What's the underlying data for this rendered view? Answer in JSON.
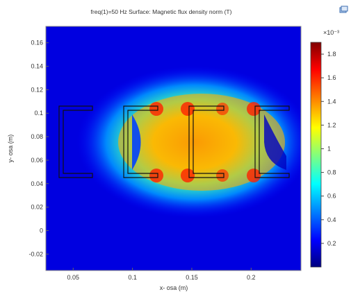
{
  "header": {
    "title": "freq(1)=50 Hz   Surface: Magnetic flux density norm (T)",
    "corner_icon": "window-restore-icon"
  },
  "chart_data": {
    "type": "heatmap",
    "title": "freq(1)=50 Hz   Surface: Magnetic flux density norm (T)",
    "xlabel": "x- osa (m)",
    "ylabel": "y- osa (m)",
    "xticks": [
      "0.05",
      "0.1",
      "0.15",
      "0.2"
    ],
    "xtick_values": [
      0.05,
      0.1,
      0.15,
      0.2
    ],
    "yticks": [
      "0.16",
      "0.14",
      "0.12",
      "0.1",
      "0.08",
      "0.06",
      "0.04",
      "0.02",
      "0",
      "-0.02"
    ],
    "ytick_values": [
      0.16,
      0.14,
      0.12,
      0.1,
      0.08,
      0.06,
      0.04,
      0.02,
      0,
      -0.02
    ],
    "xlim": [
      0.027,
      0.242
    ],
    "ylim": [
      -0.034,
      0.174
    ],
    "colorbar": {
      "exponent_label": "×10⁻³",
      "ticks": [
        "1.8",
        "1.6",
        "1.4",
        "1.2",
        "1",
        "0.8",
        "0.6",
        "0.4",
        "0.2"
      ],
      "tick_values": [
        1.8,
        1.6,
        1.4,
        1.2,
        1.0,
        0.8,
        0.6,
        0.4,
        0.2
      ],
      "range": [
        0.0,
        1.9
      ],
      "colormap": [
        "#00007f",
        "#0000ff",
        "#00ffff",
        "#ffff00",
        "#ff8000",
        "#ff0000",
        "#800000"
      ]
    }
  }
}
